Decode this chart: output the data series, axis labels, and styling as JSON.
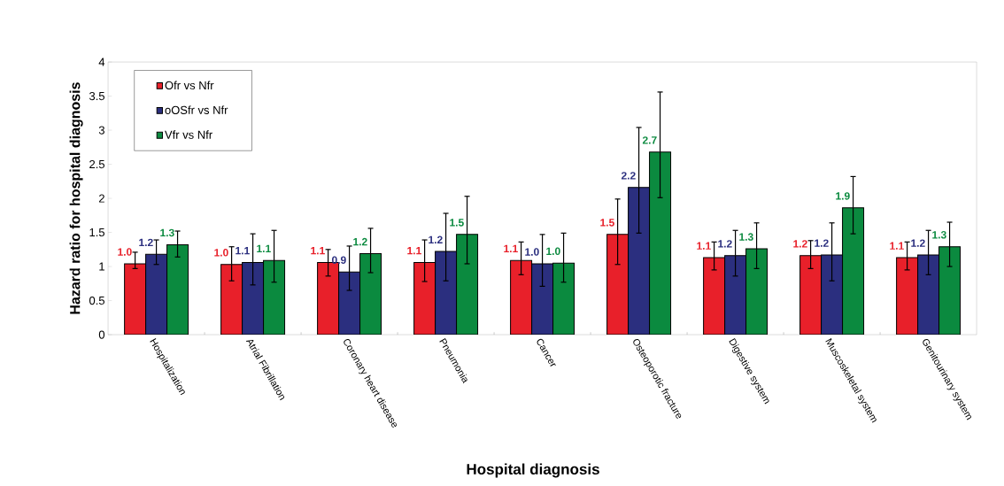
{
  "chart_data": {
    "type": "bar",
    "xlabel": "Hospital diagnosis",
    "ylabel": "Hazard ratio for hospital diagnosis",
    "categories": [
      "Hospitalization",
      "Atrial Fibrillation",
      "Coronary heart disease",
      "Pneumonia",
      "Cancer",
      "Osteoporotic fracture",
      "Digestive system",
      "Muscoskeletal system",
      "Genitourinary system"
    ],
    "series": [
      {
        "name": "Ofr vs Nfr",
        "color": "#e8202a",
        "values": [
          1.04,
          1.03,
          1.06,
          1.06,
          1.09,
          1.47,
          1.13,
          1.16,
          1.13
        ],
        "errors": [
          [
            0.97,
            1.21
          ],
          [
            0.79,
            1.29
          ],
          [
            0.86,
            1.25
          ],
          [
            0.78,
            1.39
          ],
          [
            0.88,
            1.36
          ],
          [
            1.03,
            1.99
          ],
          [
            0.95,
            1.36
          ],
          [
            0.97,
            1.38
          ],
          [
            0.95,
            1.36
          ]
        ],
        "value_labels": [
          "1.0",
          "1.0",
          "1.1",
          "1.1",
          "1.1",
          "1.5",
          "1.1",
          "1.2",
          "1.1"
        ]
      },
      {
        "name": "oOSfr vs Nfr",
        "color": "#2b2f7f",
        "values": [
          1.18,
          1.06,
          0.92,
          1.22,
          1.04,
          2.16,
          1.16,
          1.17,
          1.17
        ],
        "errors": [
          [
            1.03,
            1.39
          ],
          [
            0.73,
            1.48
          ],
          [
            0.65,
            1.3
          ],
          [
            0.79,
            1.78
          ],
          [
            0.71,
            1.47
          ],
          [
            1.49,
            3.04
          ],
          [
            0.86,
            1.53
          ],
          [
            0.79,
            1.64
          ],
          [
            0.88,
            1.53
          ]
        ],
        "value_labels": [
          "1.2",
          "1.1",
          "0.9",
          "1.2",
          "1.0",
          "2.2",
          "1.2",
          "1.2",
          "1.2"
        ]
      },
      {
        "name": "Vfr vs Nfr",
        "color": "#0b8a3f",
        "values": [
          1.32,
          1.09,
          1.19,
          1.47,
          1.05,
          2.68,
          1.26,
          1.86,
          1.29
        ],
        "errors": [
          [
            1.14,
            1.52
          ],
          [
            0.77,
            1.53
          ],
          [
            0.91,
            1.56
          ],
          [
            1.04,
            2.03
          ],
          [
            0.77,
            1.49
          ],
          [
            2.01,
            3.56
          ],
          [
            0.97,
            1.64
          ],
          [
            1.48,
            2.32
          ],
          [
            1.0,
            1.65
          ]
        ],
        "value_labels": [
          "1.3",
          "1.1",
          "1.2",
          "1.5",
          "1.0",
          "2.7",
          "1.3",
          "1.9",
          "1.3"
        ]
      }
    ],
    "ylim": [
      0,
      4
    ],
    "yticks": [
      0,
      0.5,
      1,
      1.5,
      2,
      2.5,
      3,
      3.5,
      4
    ],
    "legend": "top left"
  }
}
